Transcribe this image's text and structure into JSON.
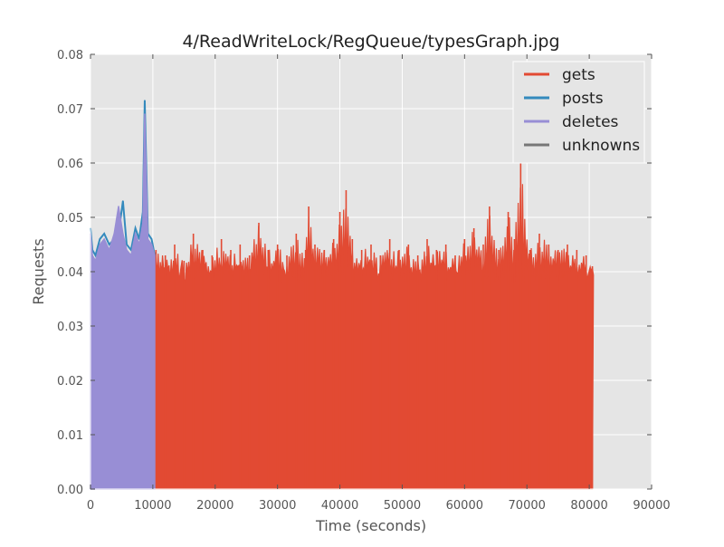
{
  "chart_data": {
    "type": "line",
    "title": "4/ReadWriteLock/RegQueue/typesGraph.jpg",
    "xlabel": "Time (seconds)",
    "ylabel": "Requests",
    "xlim": [
      0,
      90000
    ],
    "ylim": [
      0,
      0.08
    ],
    "xticks": [
      0,
      10000,
      20000,
      30000,
      40000,
      50000,
      60000,
      70000,
      80000,
      90000
    ],
    "yticks": [
      0.0,
      0.01,
      0.02,
      0.03,
      0.04,
      0.05,
      0.06,
      0.07,
      0.08
    ],
    "xtick_labels": [
      "0",
      "10000",
      "20000",
      "30000",
      "40000",
      "50000",
      "60000",
      "70000",
      "80000",
      "90000"
    ],
    "ytick_labels": [
      "0.00",
      "0.01",
      "0.02",
      "0.03",
      "0.04",
      "0.05",
      "0.06",
      "0.07",
      "0.08"
    ],
    "grid": true,
    "legend_position": "top-right",
    "series": [
      {
        "name": "gets",
        "color": "#e24a33",
        "x": [
          10500,
          12000,
          13500,
          15000,
          16500,
          18000,
          19500,
          21000,
          22500,
          24000,
          25500,
          27000,
          28500,
          30000,
          31500,
          33000,
          34500,
          35000,
          36000,
          37500,
          39000,
          40000,
          41000,
          42000,
          43500,
          45000,
          46500,
          48000,
          49500,
          51000,
          52500,
          54000,
          55500,
          57000,
          58500,
          60000,
          61500,
          63000,
          64000,
          65500,
          67000,
          68000,
          69000,
          70500,
          72000,
          73500,
          75000,
          76500,
          78000,
          79500,
          80500
        ],
        "values": [
          0.044,
          0.043,
          0.045,
          0.042,
          0.047,
          0.044,
          0.043,
          0.046,
          0.044,
          0.045,
          0.043,
          0.049,
          0.044,
          0.045,
          0.043,
          0.047,
          0.044,
          0.052,
          0.045,
          0.044,
          0.046,
          0.051,
          0.055,
          0.046,
          0.044,
          0.045,
          0.043,
          0.046,
          0.044,
          0.045,
          0.043,
          0.046,
          0.044,
          0.045,
          0.043,
          0.046,
          0.048,
          0.045,
          0.052,
          0.044,
          0.051,
          0.046,
          0.06,
          0.044,
          0.047,
          0.045,
          0.044,
          0.045,
          0.044,
          0.043,
          0.041
        ]
      },
      {
        "name": "posts",
        "color": "#348abd",
        "x": [
          0,
          300,
          800,
          1500,
          2200,
          3000,
          3800,
          4500,
          5200,
          5800,
          6500,
          7200,
          7800,
          8400,
          8700,
          9200,
          9800,
          10300
        ],
        "values": [
          0.048,
          0.044,
          0.043,
          0.046,
          0.047,
          0.045,
          0.046,
          0.047,
          0.053,
          0.045,
          0.044,
          0.048,
          0.046,
          0.051,
          0.0715,
          0.047,
          0.046,
          0.043
        ]
      },
      {
        "name": "deletes",
        "color": "#988ed5",
        "x": [
          0,
          300,
          800,
          1500,
          2200,
          3000,
          3800,
          4500,
          5200,
          5800,
          6500,
          7200,
          7800,
          8400,
          8700,
          9200,
          9800,
          10300
        ],
        "values": [
          0.047,
          0.043,
          0.042,
          0.045,
          0.046,
          0.044,
          0.047,
          0.052,
          0.047,
          0.044,
          0.043,
          0.047,
          0.045,
          0.049,
          0.069,
          0.046,
          0.045,
          0.043
        ]
      },
      {
        "name": "unknowns",
        "color": "#777777",
        "x": [],
        "values": []
      }
    ]
  }
}
